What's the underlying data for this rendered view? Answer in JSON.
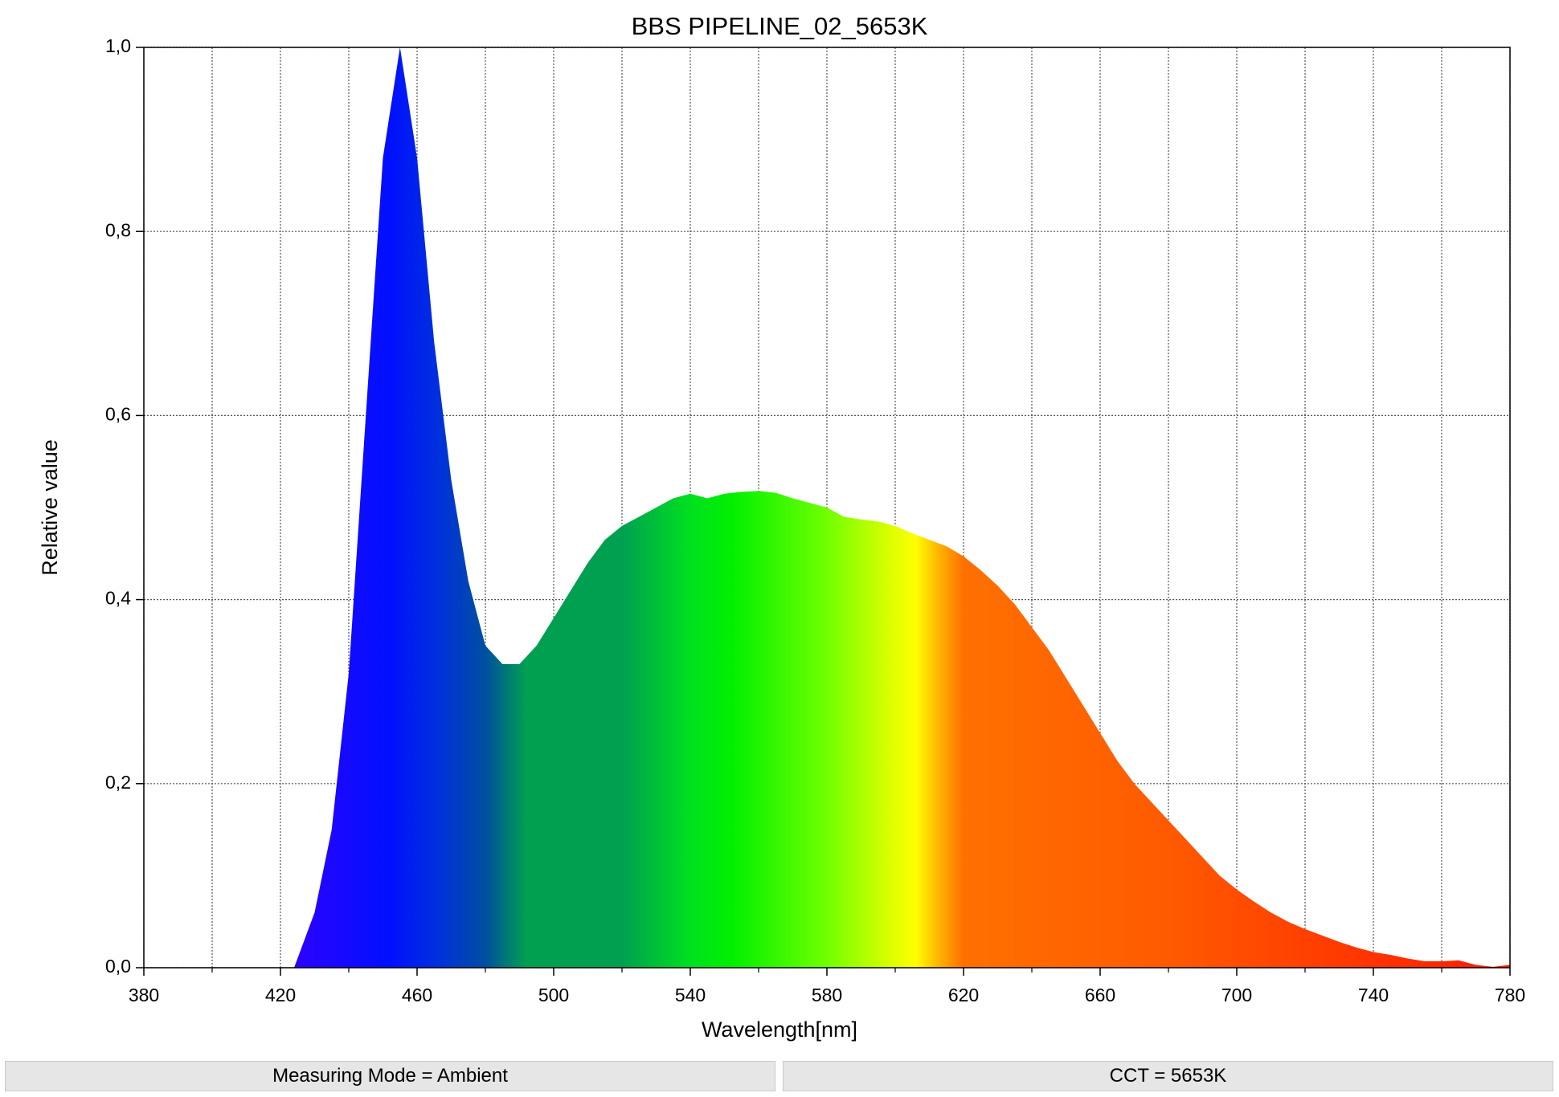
{
  "chart_data": {
    "type": "area",
    "title": "BBS PIPELINE_02_5653K",
    "x_label": "Wavelength[nm]",
    "y_label": "Relative value",
    "x": [
      380,
      385,
      390,
      395,
      400,
      405,
      410,
      415,
      420,
      424,
      425,
      430,
      435,
      440,
      445,
      450,
      455,
      460,
      465,
      470,
      475,
      480,
      485,
      490,
      495,
      500,
      505,
      510,
      515,
      520,
      525,
      530,
      535,
      540,
      545,
      550,
      555,
      560,
      565,
      570,
      575,
      580,
      585,
      590,
      595,
      600,
      605,
      610,
      615,
      620,
      625,
      630,
      635,
      640,
      645,
      650,
      655,
      660,
      665,
      670,
      675,
      680,
      685,
      690,
      695,
      700,
      705,
      710,
      715,
      720,
      725,
      730,
      735,
      740,
      745,
      750,
      755,
      760,
      765,
      770,
      775,
      780
    ],
    "values": [
      null,
      null,
      null,
      null,
      null,
      null,
      null,
      null,
      null,
      0,
      0.01,
      0.06,
      0.15,
      0.32,
      0.6,
      0.88,
      1.0,
      0.88,
      0.68,
      0.53,
      0.42,
      0.35,
      0.33,
      0.33,
      0.35,
      0.38,
      0.41,
      0.44,
      0.465,
      0.48,
      0.49,
      0.5,
      0.51,
      0.515,
      0.51,
      0.515,
      0.517,
      0.518,
      0.516,
      0.51,
      0.505,
      0.5,
      0.49,
      0.487,
      0.485,
      0.48,
      0.472,
      0.465,
      0.458,
      0.447,
      0.432,
      0.415,
      0.395,
      0.37,
      0.345,
      0.315,
      0.285,
      0.255,
      0.225,
      0.2,
      0.18,
      0.16,
      0.14,
      0.12,
      0.1,
      0.085,
      0.072,
      0.06,
      0.05,
      0.042,
      0.035,
      0.028,
      0.022,
      0.017,
      0.014,
      0.01,
      0.007,
      0.007,
      0.008,
      0.003,
      0.001,
      0.003
    ],
    "xlim": [
      380,
      780
    ],
    "ylim": [
      0,
      1
    ],
    "xticks": [
      380,
      420,
      460,
      500,
      540,
      580,
      620,
      660,
      700,
      740,
      780
    ],
    "xminorticks": [
      400,
      440,
      480,
      520,
      560,
      600,
      640,
      680,
      720,
      760
    ],
    "yticks": [
      {
        "value": 0,
        "label": "0,0"
      },
      {
        "value": 0.2,
        "label": "0,2"
      },
      {
        "value": 0.4,
        "label": "0,4"
      },
      {
        "value": 0.6,
        "label": "0,6"
      },
      {
        "value": 0.8,
        "label": "0,8"
      },
      {
        "value": 1,
        "label": "1,0"
      }
    ],
    "grid": true
  },
  "status_bar": [
    "Measuring Mode = Ambient",
    "CCT = 5653K"
  ]
}
